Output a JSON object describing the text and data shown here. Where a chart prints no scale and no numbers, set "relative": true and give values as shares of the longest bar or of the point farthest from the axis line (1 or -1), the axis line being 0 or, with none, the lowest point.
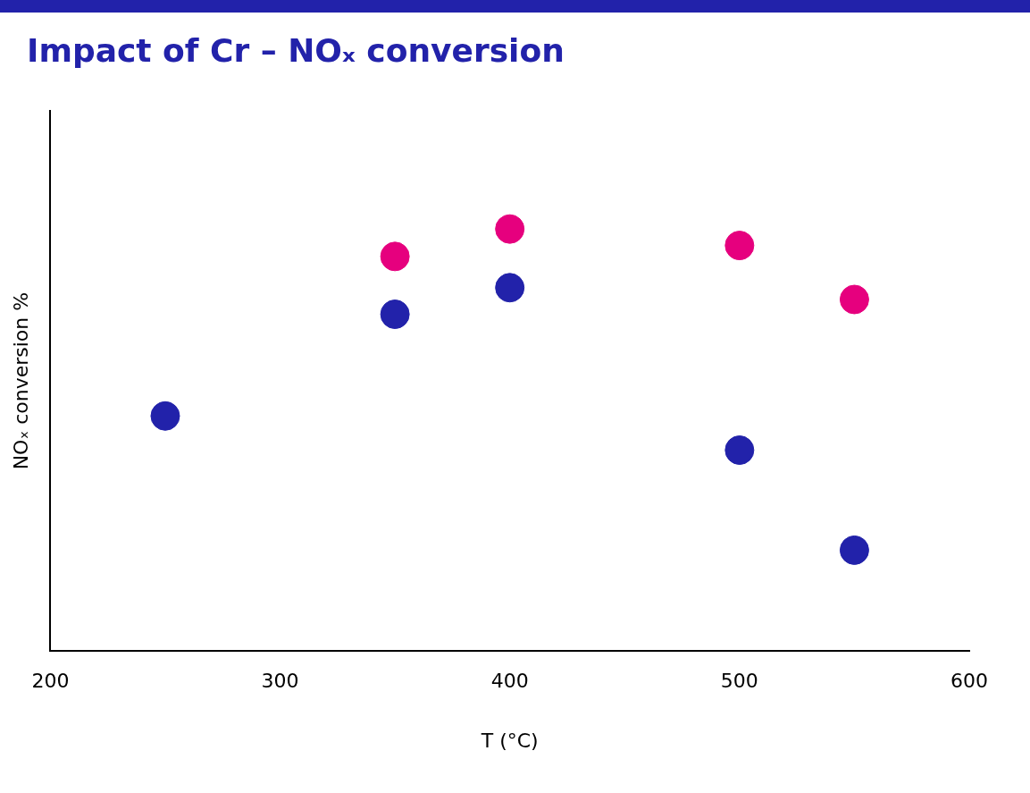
{
  "chart_data": {
    "type": "scatter",
    "title": "Impact of Cr – NOₓ conversion",
    "xlabel": "T (°C)",
    "ylabel": "NOₓ conversion %",
    "relative": true,
    "xlim": [
      200,
      600
    ],
    "xticks": [
      200,
      300,
      400,
      500,
      600
    ],
    "grid": false,
    "legend": false,
    "marker": "circle",
    "series": [
      {
        "color": "#2222aa",
        "x": [
          250,
          350,
          400,
          500,
          550
        ],
        "values": [
          0.557,
          0.798,
          0.861,
          0.476,
          0.239
        ]
      },
      {
        "color": "#e6007e",
        "x": [
          350,
          400,
          500,
          550
        ],
        "values": [
          0.935,
          1,
          0.961,
          0.833
        ]
      }
    ]
  }
}
